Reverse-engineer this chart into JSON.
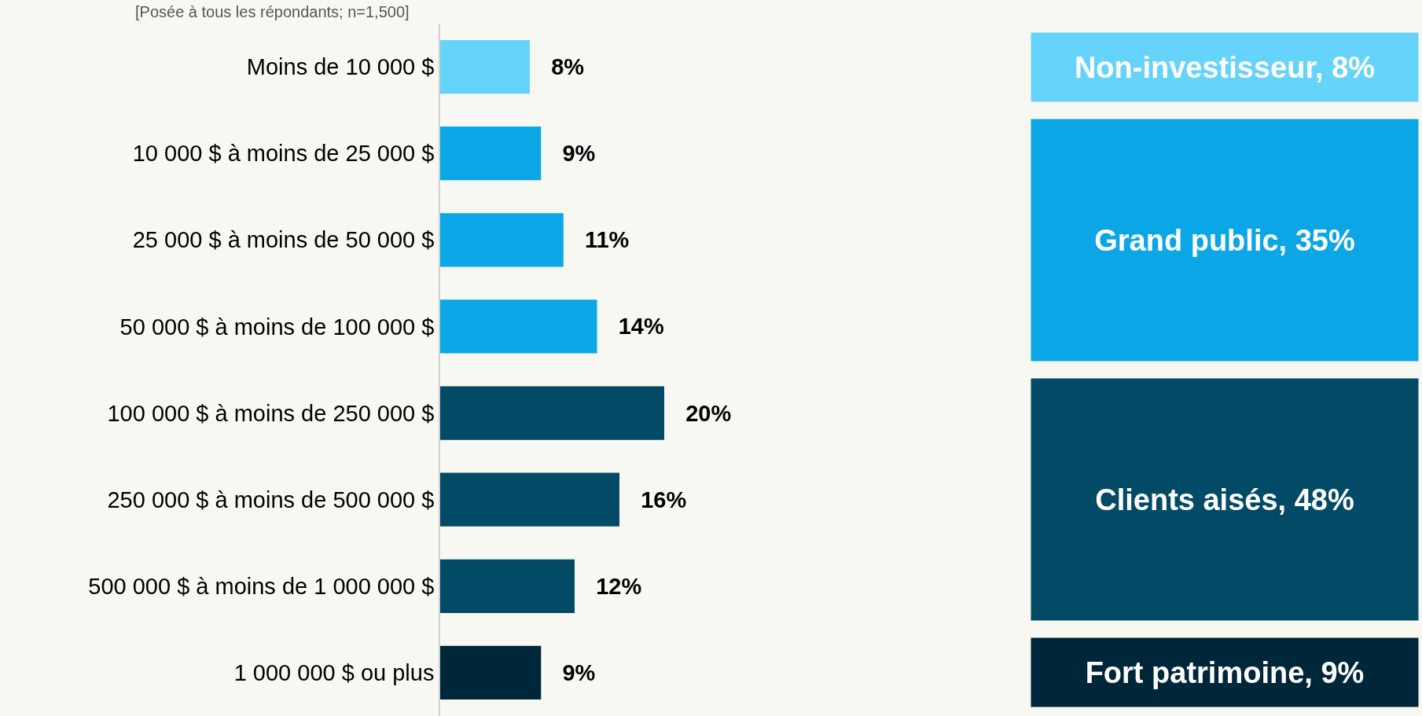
{
  "chart_data": {
    "type": "bar",
    "orientation": "horizontal",
    "subtitle": "[Posée à tous les répondants; n=1,500]",
    "categories": [
      "Moins de 10 000 $",
      "10 000 $ à moins de 25 000 $",
      "25 000 $ à moins de 50 000 $",
      "50 000 $ à moins de 100 000 $",
      "100 000 $ à moins de 250 000 $",
      "250 000 $ à moins de 500 000 $",
      "500 000 $ à moins de 1 000 000 $",
      "1 000 000 $ ou plus"
    ],
    "values": [
      8,
      9,
      11,
      14,
      20,
      16,
      12,
      9
    ],
    "colors": [
      "#66d3fa",
      "#0aa6e6",
      "#0aa6e6",
      "#0aa6e6",
      "#034a66",
      "#034a66",
      "#034a66",
      "#00263a"
    ],
    "value_labels": [
      "8%",
      "9%",
      "11%",
      "14%",
      "20%",
      "16%",
      "12%",
      "9%"
    ],
    "tick_labels": "y",
    "grid": false,
    "legend": false,
    "annotations": [
      "Non-investisseur, 8%",
      "Grand public, 35%",
      "Clients aisés, 48%",
      "Fort patrimoine, 9%"
    ]
  }
}
